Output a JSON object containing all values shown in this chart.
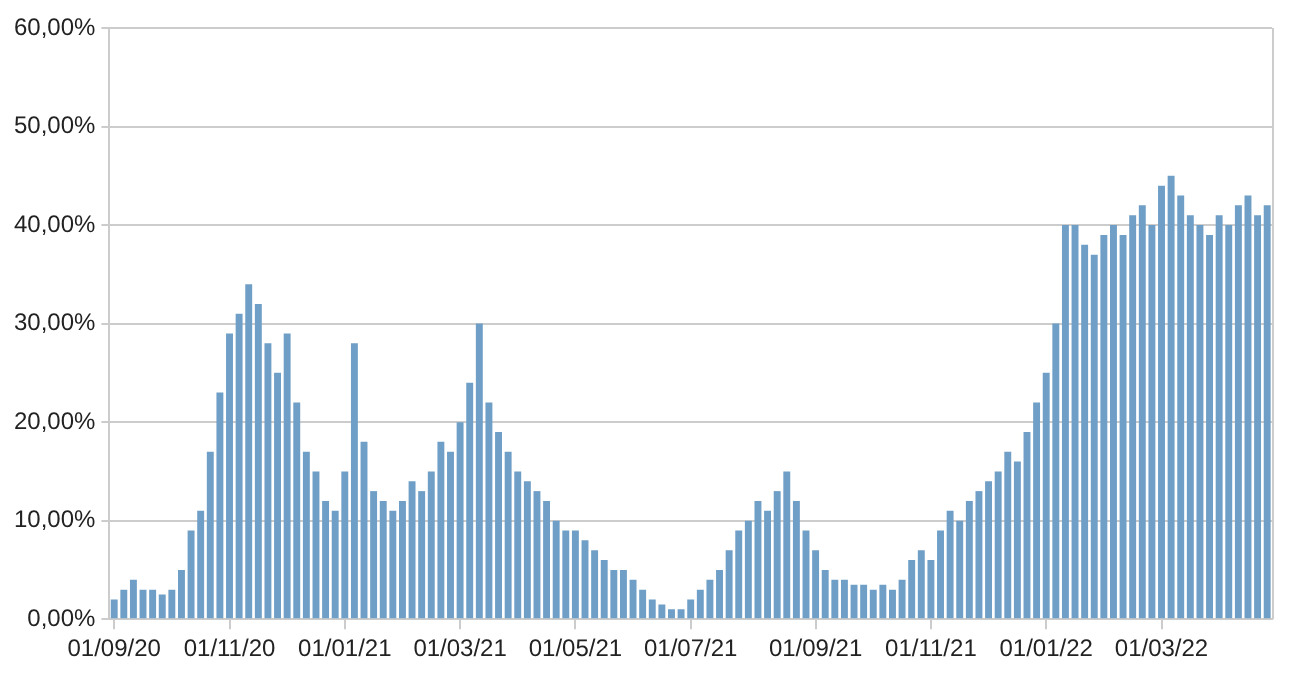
{
  "chart_data": {
    "type": "bar",
    "color": "#6f9ec6",
    "categories": [
      "01/09/20",
      null,
      null,
      null,
      null,
      null,
      null,
      null,
      null,
      null,
      null,
      null,
      "01/11/20",
      null,
      null,
      null,
      null,
      null,
      null,
      null,
      null,
      null,
      null,
      null,
      "01/01/21",
      null,
      null,
      null,
      null,
      null,
      null,
      null,
      null,
      null,
      null,
      null,
      "01/03/21",
      null,
      null,
      null,
      null,
      null,
      null,
      null,
      null,
      null,
      null,
      null,
      "01/05/21",
      null,
      null,
      null,
      null,
      null,
      null,
      null,
      null,
      null,
      null,
      null,
      "01/07/21",
      null,
      null,
      null,
      null,
      null,
      null,
      null,
      null,
      null,
      null,
      null,
      null,
      "01/09/21",
      null,
      null,
      null,
      null,
      null,
      null,
      null,
      null,
      null,
      null,
      null,
      "01/11/21",
      null,
      null,
      null,
      null,
      null,
      null,
      null,
      null,
      null,
      null,
      null,
      "01/01/22",
      null,
      null,
      null,
      null,
      null,
      null,
      null,
      null,
      null,
      null,
      null,
      "01/03/22",
      null,
      null,
      null,
      null,
      null,
      null,
      null,
      null,
      null,
      null,
      null
    ],
    "values": [
      2,
      3,
      4,
      3,
      3,
      2.5,
      3,
      5,
      9,
      11,
      17,
      23,
      29,
      31,
      34,
      32,
      28,
      25,
      29,
      22,
      17,
      15,
      12,
      11,
      15,
      28,
      18,
      13,
      12,
      11,
      12,
      14,
      13,
      15,
      18,
      17,
      20,
      24,
      30,
      22,
      19,
      17,
      15,
      14,
      13,
      12,
      10,
      9,
      9,
      8,
      7,
      6,
      5,
      5,
      4,
      3,
      2,
      1.5,
      1,
      1,
      2,
      3,
      4,
      5,
      7,
      9,
      10,
      12,
      11,
      13,
      15,
      12,
      9,
      7,
      5,
      4,
      4,
      3.5,
      3.5,
      3,
      3.5,
      3,
      4,
      6,
      7,
      6,
      9,
      11,
      10,
      12,
      13,
      14,
      15,
      17,
      16,
      19,
      22,
      25,
      30,
      40,
      40,
      38,
      37,
      39,
      40,
      39,
      41,
      42,
      40,
      44,
      45,
      43,
      41,
      40,
      39,
      41,
      40,
      42,
      43,
      41,
      42
    ],
    "ylim": [
      0,
      60
    ],
    "yticks": [
      {
        "value": 0,
        "label": "0,00%"
      },
      {
        "value": 10,
        "label": "10,00%"
      },
      {
        "value": 20,
        "label": "20,00%"
      },
      {
        "value": 30,
        "label": "30,00%"
      },
      {
        "value": 40,
        "label": "40,00%"
      },
      {
        "value": 50,
        "label": "50,00%"
      },
      {
        "value": 60,
        "label": "60,00%"
      }
    ],
    "grid": "y"
  }
}
